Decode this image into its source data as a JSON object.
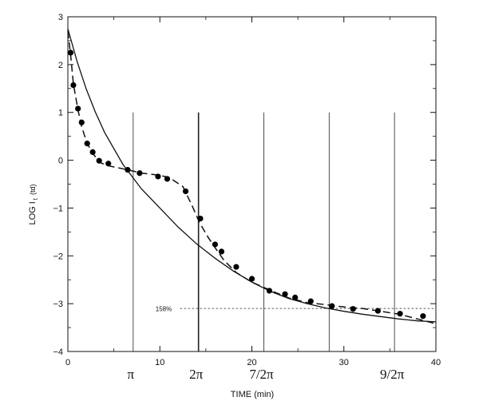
{
  "chart_data": {
    "type": "scatter",
    "xlabel": "TIME (min)",
    "ylabel": "LOG I",
    "ylabel_subscript": "t",
    "ylabel_unit": "(td)",
    "xlim": [
      0,
      40
    ],
    "ylim": [
      -4,
      3
    ],
    "x_ticks": [
      0,
      10,
      20,
      30,
      40
    ],
    "y_ticks": [
      3,
      2,
      1,
      0,
      -1,
      -2,
      -3,
      -4
    ],
    "x_tick_labels": [
      "0",
      "10",
      "20",
      "30",
      "40"
    ],
    "y_tick_labels": [
      "3",
      "2",
      "1",
      "0",
      "−1",
      "−2",
      "−3",
      "−4"
    ],
    "grid": false,
    "phase_lines": [
      {
        "x": 7.1,
        "label": "π"
      },
      {
        "x": 14.2,
        "label": "2π"
      },
      {
        "x": 21.3,
        "label": "7/2π"
      },
      {
        "x": 28.4,
        "label": ""
      },
      {
        "x": 35.5,
        "label": "9/2π"
      }
    ],
    "reference_line": {
      "y": -3.1,
      "label": "158%"
    },
    "points": {
      "x": [
        0.3,
        0.6,
        1.1,
        1.5,
        2.1,
        2.7,
        3.4,
        4.4,
        6.5,
        7.8,
        9.8,
        10.8,
        12.8,
        14.4,
        16.0,
        16.7,
        18.3,
        20.0,
        21.9,
        23.6,
        24.7,
        26.4,
        28.7,
        31.0,
        33.7,
        36.1,
        38.6
      ],
      "y": [
        2.25,
        1.57,
        1.08,
        0.79,
        0.35,
        0.17,
        -0.01,
        -0.07,
        -0.2,
        -0.27,
        -0.34,
        -0.39,
        -0.65,
        -1.22,
        -1.76,
        -1.91,
        -2.23,
        -2.48,
        -2.73,
        -2.8,
        -2.87,
        -2.95,
        -3.05,
        -3.11,
        -3.15,
        -3.21,
        -3.26
      ]
    },
    "series": [
      {
        "style": "solid",
        "x": [
          0,
          1,
          2,
          3,
          4,
          6,
          8,
          10,
          12,
          14,
          16,
          18,
          20,
          22,
          24,
          26,
          28,
          30,
          32,
          34,
          36,
          38,
          40
        ],
        "y": [
          2.75,
          2.07,
          1.49,
          1.0,
          0.58,
          -0.09,
          -0.6,
          -1.0,
          -1.4,
          -1.75,
          -2.05,
          -2.32,
          -2.55,
          -2.74,
          -2.89,
          -3.0,
          -3.09,
          -3.16,
          -3.22,
          -3.27,
          -3.32,
          -3.36,
          -3.38
        ]
      },
      {
        "style": "dashed",
        "x": [
          0,
          0.3,
          0.6,
          1.1,
          1.5,
          2.1,
          2.8,
          3.5,
          4.5,
          6.5,
          8.0,
          9.8,
          11.0,
          12.5,
          13.5,
          14.3,
          15.2,
          16.0,
          17.0,
          18.3,
          20.0,
          22.0,
          24.0,
          26.0,
          28.0,
          30.0,
          32.0,
          34.0,
          36.0,
          38.0,
          40.0
        ],
        "y": [
          2.7,
          2.2,
          1.6,
          1.05,
          0.7,
          0.35,
          0.12,
          -0.05,
          -0.12,
          -0.2,
          -0.27,
          -0.31,
          -0.36,
          -0.55,
          -0.95,
          -1.3,
          -1.6,
          -1.83,
          -2.1,
          -2.35,
          -2.55,
          -2.72,
          -2.88,
          -2.98,
          -3.02,
          -3.07,
          -3.1,
          -3.16,
          -3.22,
          -3.32,
          -3.42
        ]
      }
    ]
  }
}
